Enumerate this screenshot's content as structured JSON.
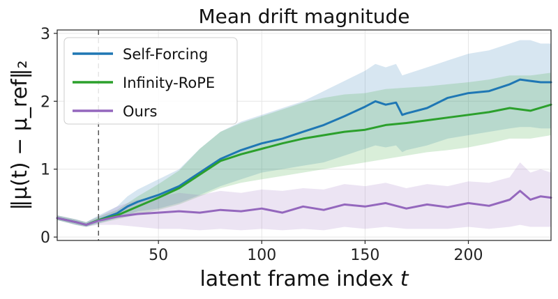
{
  "chart_data": {
    "type": "line",
    "title": "Mean drift magnitude",
    "xlabel_main": "latent frame index ",
    "xlabel_var": "t",
    "ylabel": "‖μ(t) − μ_ref‖₂",
    "xlim": [
      1,
      240
    ],
    "ylim": [
      -0.05,
      3.05
    ],
    "xticks": [
      50,
      100,
      150,
      200
    ],
    "yticks": [
      0,
      1,
      2,
      3
    ],
    "grid": true,
    "legend_position": "top-left",
    "vline_x": 21,
    "series": [
      {
        "name": "Self-Forcing",
        "color": "#1f77b4",
        "x": [
          1,
          10,
          15,
          21,
          30,
          35,
          40,
          50,
          60,
          70,
          80,
          90,
          100,
          110,
          120,
          130,
          140,
          150,
          155,
          160,
          165,
          168,
          170,
          180,
          190,
          200,
          210,
          220,
          225,
          230,
          235,
          240
        ],
        "y": [
          0.28,
          0.22,
          0.18,
          0.25,
          0.35,
          0.45,
          0.52,
          0.62,
          0.75,
          0.95,
          1.15,
          1.28,
          1.38,
          1.45,
          1.55,
          1.65,
          1.78,
          1.92,
          2.0,
          1.95,
          1.98,
          1.8,
          1.82,
          1.9,
          2.05,
          2.12,
          2.15,
          2.25,
          2.32,
          2.3,
          2.28,
          2.28
        ],
        "band_low": [
          0.25,
          0.18,
          0.15,
          0.2,
          0.28,
          0.32,
          0.38,
          0.42,
          0.5,
          0.62,
          0.75,
          0.85,
          0.95,
          1.0,
          1.05,
          1.1,
          1.2,
          1.3,
          1.35,
          1.32,
          1.35,
          1.25,
          1.28,
          1.35,
          1.45,
          1.5,
          1.55,
          1.6,
          1.62,
          1.62,
          1.6,
          1.6
        ],
        "band_high": [
          0.32,
          0.26,
          0.22,
          0.32,
          0.45,
          0.6,
          0.7,
          0.85,
          1.0,
          1.3,
          1.55,
          1.7,
          1.8,
          1.9,
          2.0,
          2.15,
          2.3,
          2.45,
          2.55,
          2.5,
          2.55,
          2.38,
          2.4,
          2.5,
          2.6,
          2.7,
          2.75,
          2.85,
          2.9,
          2.9,
          2.85,
          2.85
        ]
      },
      {
        "name": "Infinity-RoPE",
        "color": "#2ca02c",
        "x": [
          1,
          10,
          15,
          21,
          30,
          40,
          50,
          60,
          70,
          80,
          90,
          100,
          110,
          120,
          130,
          140,
          150,
          160,
          170,
          180,
          190,
          200,
          210,
          220,
          230,
          240
        ],
        "y": [
          0.28,
          0.22,
          0.18,
          0.25,
          0.32,
          0.45,
          0.58,
          0.72,
          0.92,
          1.12,
          1.22,
          1.3,
          1.38,
          1.45,
          1.5,
          1.55,
          1.58,
          1.65,
          1.68,
          1.72,
          1.76,
          1.8,
          1.84,
          1.9,
          1.86,
          1.95
        ],
        "band_low": [
          0.25,
          0.18,
          0.15,
          0.2,
          0.26,
          0.33,
          0.4,
          0.48,
          0.6,
          0.72,
          0.8,
          0.85,
          0.9,
          0.95,
          1.0,
          1.05,
          1.1,
          1.15,
          1.2,
          1.25,
          1.28,
          1.32,
          1.38,
          1.45,
          1.45,
          1.5
        ],
        "band_high": [
          0.32,
          0.26,
          0.22,
          0.3,
          0.4,
          0.6,
          0.78,
          0.98,
          1.3,
          1.55,
          1.68,
          1.78,
          1.88,
          1.98,
          2.05,
          2.1,
          2.12,
          2.18,
          2.2,
          2.22,
          2.25,
          2.28,
          2.32,
          2.38,
          2.38,
          2.42
        ]
      },
      {
        "name": "Ours",
        "color": "#9467bd",
        "x": [
          1,
          10,
          15,
          21,
          30,
          40,
          50,
          60,
          70,
          80,
          90,
          100,
          110,
          120,
          130,
          140,
          150,
          160,
          170,
          180,
          190,
          200,
          210,
          220,
          225,
          230,
          235,
          240
        ],
        "y": [
          0.28,
          0.22,
          0.18,
          0.24,
          0.3,
          0.34,
          0.36,
          0.38,
          0.36,
          0.4,
          0.38,
          0.42,
          0.36,
          0.45,
          0.4,
          0.48,
          0.45,
          0.5,
          0.42,
          0.48,
          0.44,
          0.5,
          0.46,
          0.55,
          0.68,
          0.55,
          0.6,
          0.58
        ],
        "band_low": [
          0.25,
          0.18,
          0.15,
          0.18,
          0.18,
          0.15,
          0.12,
          0.12,
          0.1,
          0.12,
          0.1,
          0.12,
          0.1,
          0.12,
          0.1,
          0.15,
          0.12,
          0.15,
          0.12,
          0.12,
          0.12,
          0.15,
          0.12,
          0.15,
          0.18,
          0.15,
          0.15,
          0.15
        ],
        "band_high": [
          0.32,
          0.26,
          0.22,
          0.3,
          0.45,
          0.55,
          0.6,
          0.65,
          0.62,
          0.68,
          0.65,
          0.7,
          0.68,
          0.72,
          0.7,
          0.78,
          0.75,
          0.8,
          0.72,
          0.78,
          0.75,
          0.82,
          0.8,
          0.88,
          1.1,
          0.95,
          1.0,
          0.95
        ]
      }
    ]
  }
}
